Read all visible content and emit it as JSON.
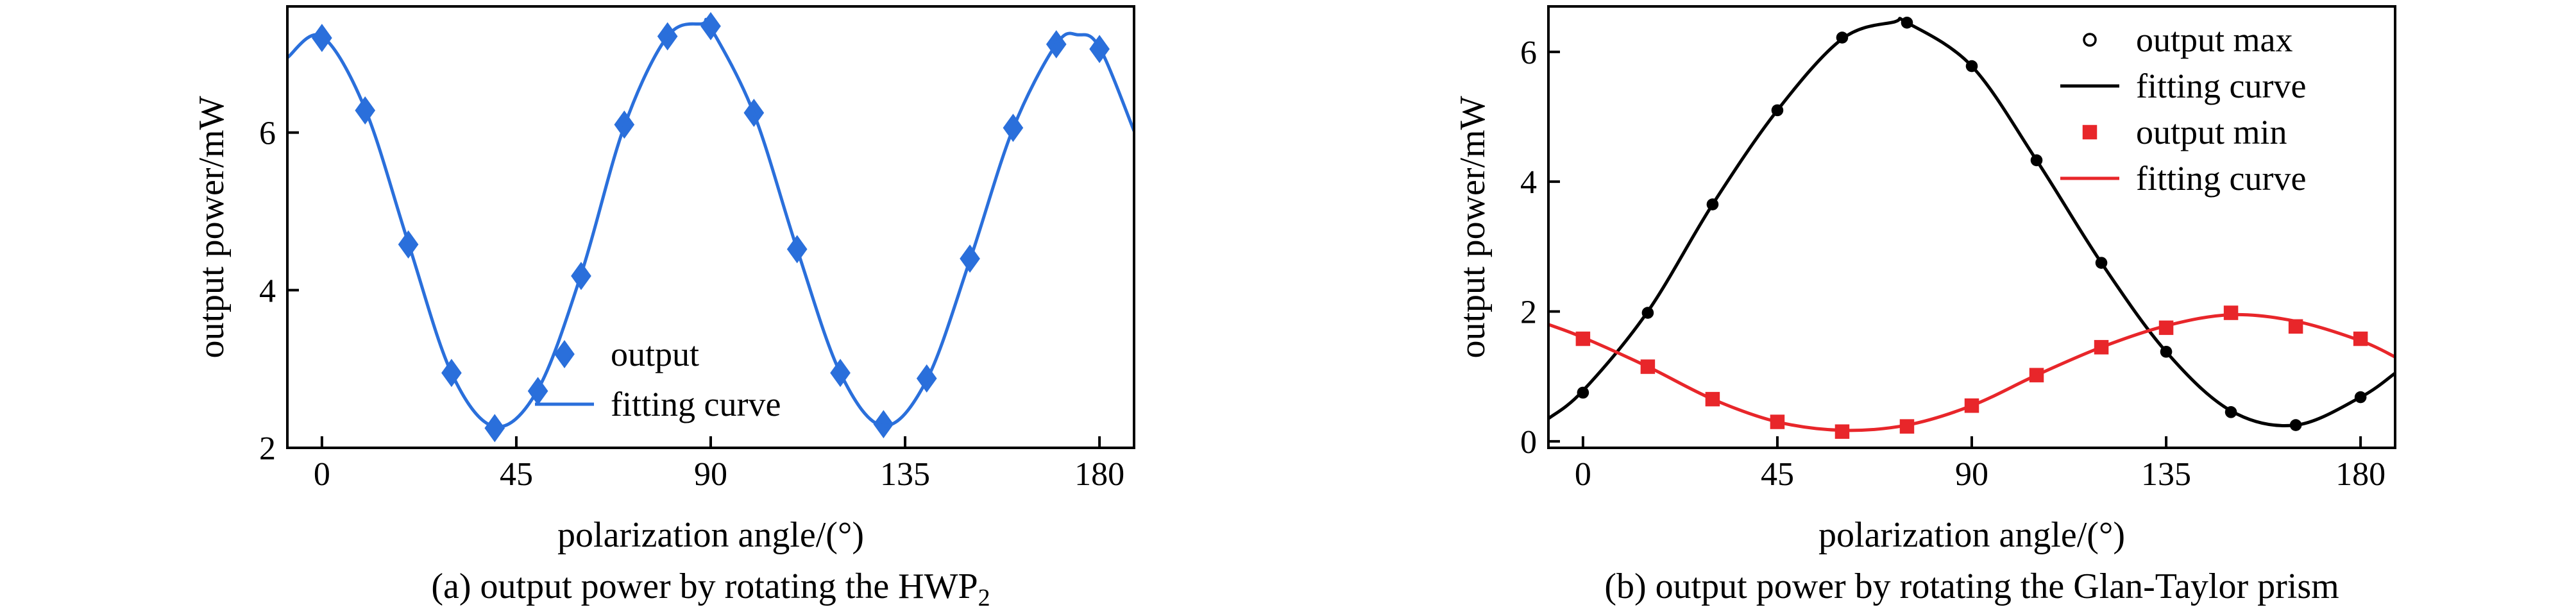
{
  "chart_data": [
    {
      "type": "scatter",
      "panel": "a",
      "caption": "(a) output power by rotating the HWP",
      "caption_subscript": "2",
      "xlabel": "polarization angle/(°)",
      "ylabel": "output power/mW",
      "xlim": [
        -8,
        188
      ],
      "ylim": [
        2,
        7.6
      ],
      "xticks": [
        0,
        45,
        90,
        135,
        180
      ],
      "yticks": [
        2,
        4,
        6
      ],
      "grid": false,
      "legend_position": "bottom-center",
      "series": [
        {
          "name": "output",
          "kind": "points",
          "marker": "diamond",
          "color": "#2a6fdb",
          "x": [
            0,
            10,
            20,
            30,
            40,
            50,
            60,
            70,
            80,
            90,
            100,
            110,
            120,
            130,
            140,
            150,
            160,
            170,
            180
          ],
          "y": [
            7.2,
            6.28,
            4.58,
            2.95,
            2.25,
            2.72,
            4.18,
            6.1,
            7.22,
            7.35,
            6.25,
            4.52,
            2.95,
            2.3,
            2.88,
            4.4,
            6.06,
            7.12,
            7.06
          ]
        },
        {
          "name": "fitting curve",
          "kind": "curve",
          "color": "#2a6fdb",
          "x": [
            -8,
            0,
            10,
            20,
            30,
            40,
            50,
            60,
            70,
            80,
            88,
            90,
            100,
            110,
            120,
            130,
            140,
            150,
            160,
            170,
            175,
            180,
            188
          ],
          "y": [
            6.95,
            7.22,
            6.3,
            4.6,
            2.95,
            2.27,
            2.74,
            4.2,
            6.08,
            7.22,
            7.38,
            7.33,
            6.24,
            4.52,
            2.95,
            2.28,
            2.86,
            4.38,
            6.05,
            7.12,
            7.24,
            7.08,
            6.02
          ]
        }
      ]
    },
    {
      "type": "scatter",
      "panel": "b",
      "caption": "(b) output power by rotating the Glan-Taylor prism",
      "xlabel": "polarization angle/(°)",
      "ylabel": "output power/mW",
      "xlim": [
        -8,
        188
      ],
      "ylim": [
        -0.1,
        6.7
      ],
      "xticks": [
        0,
        45,
        90,
        135,
        180
      ],
      "yticks": [
        0,
        2,
        4,
        6
      ],
      "grid": false,
      "legend_position": "top-right",
      "series": [
        {
          "name": "output max",
          "kind": "points",
          "marker": "circle",
          "color": "#000000",
          "x": [
            0,
            15,
            30,
            45,
            60,
            75,
            90,
            105,
            120,
            135,
            150,
            165,
            180
          ],
          "y": [
            0.75,
            1.98,
            3.65,
            5.1,
            6.22,
            6.45,
            5.78,
            4.33,
            2.75,
            1.38,
            0.45,
            0.25,
            0.68
          ]
        },
        {
          "name": "fitting curve",
          "kind": "curve",
          "color": "#000000",
          "x": [
            -8,
            0,
            15,
            30,
            45,
            60,
            72,
            75,
            90,
            105,
            120,
            135,
            150,
            165,
            180,
            188
          ],
          "y": [
            0.35,
            0.78,
            2.0,
            3.65,
            5.1,
            6.2,
            6.46,
            6.45,
            5.78,
            4.33,
            2.75,
            1.38,
            0.47,
            0.25,
            0.68,
            1.05
          ]
        },
        {
          "name": "output min",
          "kind": "points",
          "marker": "square",
          "color": "#e8262a",
          "x": [
            0,
            15,
            30,
            45,
            60,
            75,
            90,
            105,
            120,
            135,
            150,
            165,
            180
          ],
          "y": [
            1.58,
            1.15,
            0.65,
            0.3,
            0.15,
            0.23,
            0.55,
            1.02,
            1.45,
            1.75,
            1.98,
            1.77,
            1.58
          ]
        },
        {
          "name": "fitting curve",
          "kind": "curve",
          "color": "#e8262a",
          "x": [
            -8,
            0,
            15,
            30,
            45,
            60,
            75,
            90,
            105,
            120,
            135,
            150,
            165,
            180,
            188
          ],
          "y": [
            1.8,
            1.6,
            1.15,
            0.65,
            0.3,
            0.17,
            0.25,
            0.55,
            1.02,
            1.45,
            1.78,
            1.95,
            1.85,
            1.55,
            1.3
          ]
        }
      ]
    }
  ]
}
